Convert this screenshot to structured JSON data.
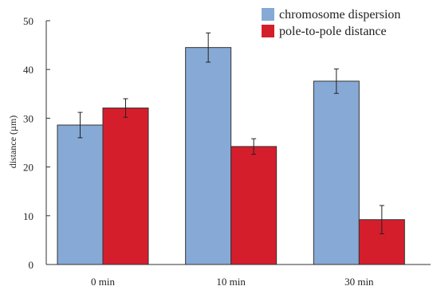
{
  "chart_data": {
    "type": "bar",
    "categories": [
      "0 min",
      "10 min",
      "30 min"
    ],
    "series": [
      {
        "name": "chromosome dispersion",
        "color": "#87a9d6",
        "values": [
          28.6,
          44.5,
          37.6
        ],
        "errors": [
          2.6,
          3.0,
          2.5
        ]
      },
      {
        "name": "pole-to-pole distance",
        "color": "#d41e2c",
        "values": [
          32.1,
          24.2,
          9.2
        ],
        "errors": [
          1.9,
          1.6,
          2.9
        ]
      }
    ],
    "ylabel": "distance (µm)",
    "xlabel": "",
    "ylim": [
      0,
      50
    ],
    "yticks": [
      0,
      10,
      20,
      30,
      40,
      50
    ],
    "grid": false,
    "legend_position": "top-right"
  }
}
